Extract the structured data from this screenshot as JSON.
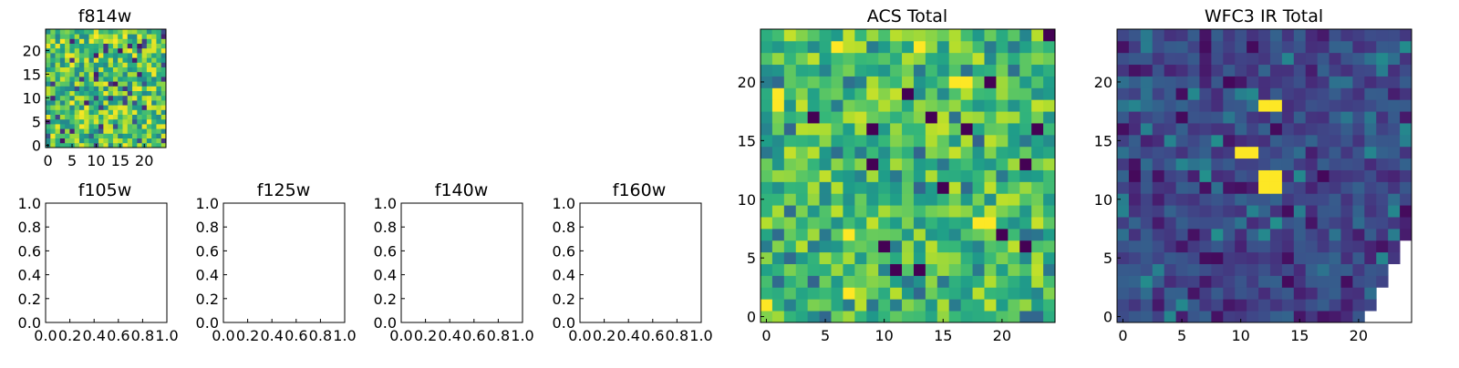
{
  "colormap": "viridis",
  "panels": {
    "f814w": {
      "title": "f814w"
    },
    "f105w": {
      "title": "f105w"
    },
    "f125w": {
      "title": "f125w"
    },
    "f140w": {
      "title": "f140w"
    },
    "f160w": {
      "title": "f160w"
    },
    "acs": {
      "title": "ACS Total"
    },
    "wfc3": {
      "title": "WFC3 IR Total"
    }
  },
  "chart_data": [
    {
      "type": "heatmap",
      "title": "f814w",
      "grid_size": [
        25,
        25
      ],
      "xlim": [
        -0.5,
        24.5
      ],
      "ylim": [
        -0.5,
        24.5
      ],
      "xticks": [
        0,
        5,
        10,
        15,
        20
      ],
      "yticks": [
        0,
        5,
        10,
        15,
        20
      ],
      "colormap": "viridis",
      "values_description": "noise-like pixels, mostly green-yellow with scattered dark pixels"
    },
    {
      "type": "empty",
      "title": "f105w",
      "xlim": [
        0,
        1
      ],
      "ylim": [
        0,
        1
      ],
      "xticks": [
        "0.0",
        "0.2",
        "0.4",
        "0.6",
        "0.8",
        "1.0"
      ],
      "yticks": [
        "0.0",
        "0.2",
        "0.4",
        "0.6",
        "0.8",
        "1.0"
      ]
    },
    {
      "type": "empty",
      "title": "f125w",
      "xlim": [
        0,
        1
      ],
      "ylim": [
        0,
        1
      ],
      "xticks": [
        "0.0",
        "0.2",
        "0.4",
        "0.6",
        "0.8",
        "1.0"
      ],
      "yticks": [
        "0.0",
        "0.2",
        "0.4",
        "0.6",
        "0.8",
        "1.0"
      ]
    },
    {
      "type": "empty",
      "title": "f140w",
      "xlim": [
        0,
        1
      ],
      "ylim": [
        0,
        1
      ],
      "xticks": [
        "0.0",
        "0.2",
        "0.4",
        "0.6",
        "0.8",
        "1.0"
      ],
      "yticks": [
        "0.0",
        "0.2",
        "0.4",
        "0.6",
        "0.8",
        "1.0"
      ]
    },
    {
      "type": "empty",
      "title": "f160w",
      "xlim": [
        0,
        1
      ],
      "ylim": [
        0,
        1
      ],
      "xticks": [
        "0.0",
        "0.2",
        "0.4",
        "0.6",
        "0.8",
        "1.0"
      ],
      "yticks": [
        "0.0",
        "0.2",
        "0.4",
        "0.6",
        "0.8",
        "1.0"
      ]
    },
    {
      "type": "heatmap",
      "title": "ACS Total",
      "grid_size": [
        25,
        25
      ],
      "xlim": [
        -0.5,
        24.5
      ],
      "ylim": [
        -0.5,
        24.5
      ],
      "xticks": [
        0,
        5,
        10,
        15,
        20
      ],
      "yticks": [
        0,
        5,
        10,
        15,
        20
      ],
      "colormap": "viridis",
      "dark_pixels": [
        [
          24,
          24
        ],
        [
          12,
          19
        ],
        [
          19,
          20
        ],
        [
          14,
          17
        ],
        [
          9,
          16
        ],
        [
          17,
          16
        ],
        [
          23,
          16
        ],
        [
          4,
          17
        ],
        [
          9,
          13
        ],
        [
          22,
          13
        ],
        [
          15,
          11
        ],
        [
          20,
          7
        ],
        [
          10,
          6
        ],
        [
          13,
          4
        ],
        [
          11,
          4
        ],
        [
          22,
          6
        ]
      ],
      "bright_pixels": [
        [
          6,
          23
        ],
        [
          13,
          23
        ],
        [
          16,
          20
        ],
        [
          17,
          20
        ],
        [
          1,
          19
        ],
        [
          1,
          18
        ],
        [
          7,
          7
        ],
        [
          19,
          8
        ],
        [
          18,
          8
        ],
        [
          0,
          1
        ],
        [
          7,
          2
        ]
      ]
    },
    {
      "type": "heatmap",
      "title": "WFC3 IR Total",
      "grid_size": [
        25,
        25
      ],
      "xlim": [
        -0.5,
        24.5
      ],
      "ylim": [
        -0.5,
        24.5
      ],
      "xticks": [
        0,
        5,
        10,
        15,
        20
      ],
      "yticks": [
        0,
        5,
        10,
        15,
        20
      ],
      "colormap": "viridis",
      "bright_pixels": [
        [
          12,
          18
        ],
        [
          13,
          18
        ],
        [
          10,
          14
        ],
        [
          11,
          14
        ],
        [
          12,
          12
        ],
        [
          13,
          12
        ],
        [
          12,
          11
        ],
        [
          13,
          11
        ]
      ],
      "masked_pixels": [
        [
          24,
          0
        ],
        [
          24,
          1
        ],
        [
          24,
          2
        ],
        [
          24,
          3
        ],
        [
          24,
          4
        ],
        [
          24,
          5
        ],
        [
          24,
          6
        ],
        [
          23,
          0
        ],
        [
          23,
          1
        ],
        [
          23,
          2
        ],
        [
          23,
          3
        ],
        [
          23,
          4
        ],
        [
          22,
          0
        ],
        [
          22,
          1
        ],
        [
          22,
          2
        ],
        [
          21,
          0
        ]
      ]
    }
  ]
}
